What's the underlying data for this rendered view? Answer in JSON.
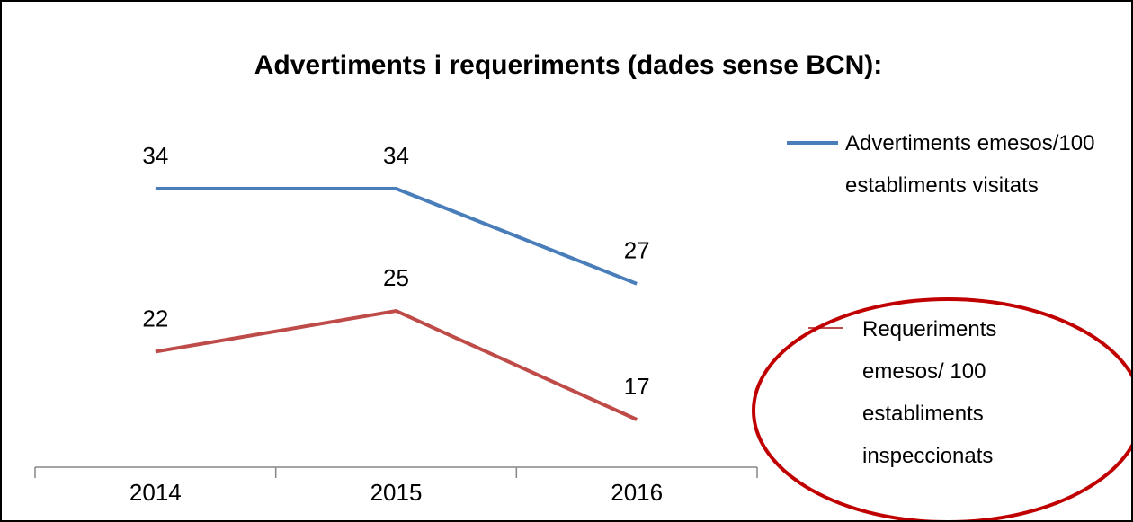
{
  "chart_data": {
    "type": "line",
    "title": "Advertiments i requeriments (dades sense BCN):",
    "categories": [
      "2014",
      "2015",
      "2016"
    ],
    "series": [
      {
        "name": "Advertiments emesos/100 establiments visitats",
        "color": "#4a7ebb",
        "values": [
          34,
          34,
          27
        ]
      },
      {
        "name": "Requeriments emesos/ 100 establiments inspeccionats",
        "color": "#be4b48",
        "values": [
          22,
          25,
          17
        ]
      }
    ],
    "legend": "right",
    "annotation_color": "#c00000"
  }
}
